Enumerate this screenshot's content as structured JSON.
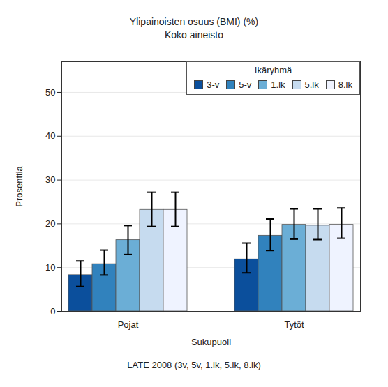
{
  "chart_data": {
    "type": "bar",
    "title": "Ylipainoisten osuus (BMI) (%)",
    "subtitle": "Koko aineisto",
    "x_label": "Sukupuoli",
    "y_label": "Prosenttia",
    "caption": "LATE 2008 (3v, 5v, 1.lk, 5.lk, 8.lk)",
    "legend_title": "Ikäryhmä",
    "legend": "top-right",
    "grid": true,
    "categories": [
      "Pojat",
      "Tytöt"
    ],
    "series": [
      {
        "name": "3-v",
        "color": "#0b4f9c",
        "values": [
          8.3,
          11.9
        ],
        "error_low": [
          5.7,
          8.8
        ],
        "error_high": [
          11.5,
          15.6
        ]
      },
      {
        "name": "5-v",
        "color": "#3182bd",
        "values": [
          10.8,
          17.3
        ],
        "error_low": [
          8.3,
          13.9
        ],
        "error_high": [
          14.0,
          21.1
        ]
      },
      {
        "name": "1.lk",
        "color": "#6baed6",
        "values": [
          16.3,
          19.8
        ],
        "error_low": [
          13.0,
          16.5
        ],
        "error_high": [
          19.6,
          23.4
        ]
      },
      {
        "name": "5.lk",
        "color": "#c6dbef",
        "values": [
          23.2,
          19.6
        ],
        "error_low": [
          19.4,
          16.4
        ],
        "error_high": [
          27.2,
          23.4
        ]
      },
      {
        "name": "8.lk",
        "color": "#eff3ff",
        "values": [
          23.2,
          19.8
        ],
        "error_low": [
          19.4,
          16.7
        ],
        "error_high": [
          27.2,
          23.6
        ]
      }
    ],
    "ylim": [
      0,
      57
    ],
    "yticks": [
      0,
      10,
      20,
      30,
      40,
      50
    ]
  }
}
